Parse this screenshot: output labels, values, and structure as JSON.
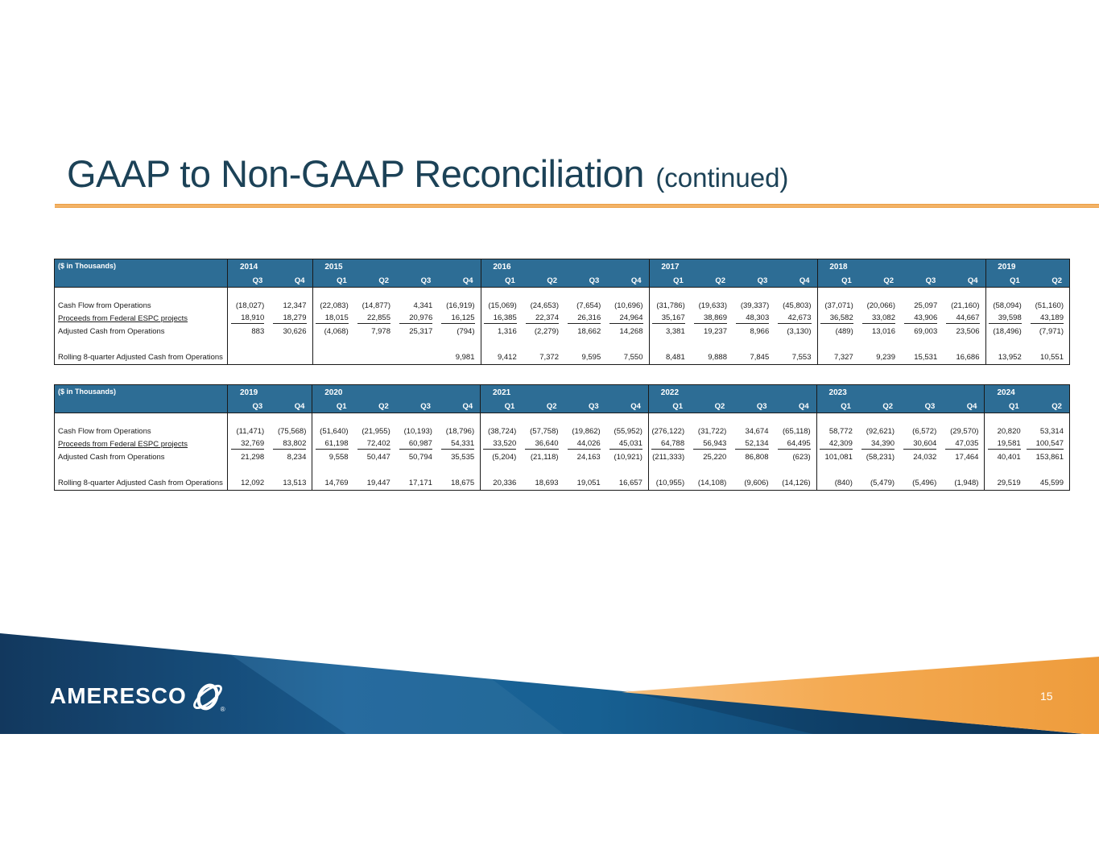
{
  "slide": {
    "title": "GAAP to Non-GAAP Reconciliation",
    "title_suffix": "(continued)",
    "page_number": "15",
    "logo_text": "AMERESCO",
    "logo_icon": "orbit-globe-icon",
    "registered_mark": "®",
    "colors": {
      "title_text": "#1c4257",
      "accent_orange_rule": "#f0a44c",
      "table_header_bg": "#2d6d95",
      "table_border": "#1a1a1a",
      "footer_blue_dark": "#0e3a5f",
      "footer_blue_mid": "#1c649a",
      "footer_orange_light": "#f8c07e",
      "footer_orange_deep": "#ee9c3c"
    }
  },
  "tables": [
    {
      "units_label": "($ in Thousands)",
      "years": [
        {
          "year": "2014",
          "quarters": [
            "Q3",
            "Q4"
          ]
        },
        {
          "year": "2015",
          "quarters": [
            "Q1",
            "Q2",
            "Q3",
            "Q4"
          ]
        },
        {
          "year": "2016",
          "quarters": [
            "Q1",
            "Q2",
            "Q3",
            "Q4"
          ]
        },
        {
          "year": "2017",
          "quarters": [
            "Q1",
            "Q2",
            "Q3",
            "Q4"
          ]
        },
        {
          "year": "2018",
          "quarters": [
            "Q1",
            "Q2",
            "Q3",
            "Q4"
          ]
        },
        {
          "year": "2019",
          "quarters": [
            "Q1",
            "Q2"
          ]
        }
      ],
      "rows": [
        {
          "label": "",
          "style": "spacer",
          "values": []
        },
        {
          "label": "Cash Flow from Operations",
          "style": "plain",
          "values": [
            "(18,027)",
            "12,347",
            "(22,083)",
            "(14,877)",
            "4,341",
            "(16,919)",
            "(15,069)",
            "(24,653)",
            "(7,654)",
            "(10,696)",
            "(31,786)",
            "(19,633)",
            "(39,337)",
            "(45,803)",
            "(37,071)",
            "(20,066)",
            "25,097",
            "(21,160)",
            "(58,094)",
            "(51,160)"
          ]
        },
        {
          "label": "Proceeds from Federal ESPC projects",
          "style": "underline",
          "values": [
            "18,910",
            "18,279",
            "18,015",
            "22,855",
            "20,976",
            "16,125",
            "16,385",
            "22,374",
            "26,316",
            "24,964",
            "35,167",
            "38,869",
            "48,303",
            "42,673",
            "36,582",
            "33,082",
            "43,906",
            "44,667",
            "39,598",
            "43,189"
          ]
        },
        {
          "label": "Adjusted Cash from Operations",
          "style": "plain",
          "values": [
            "883",
            "30,626",
            "(4,068)",
            "7,978",
            "25,317",
            "(794)",
            "1,316",
            "(2,279)",
            "18,662",
            "14,268",
            "3,381",
            "19,237",
            "8,966",
            "(3,130)",
            "(489)",
            "13,016",
            "69,003",
            "23,506",
            "(18,496)",
            "(7,971)"
          ]
        },
        {
          "label": "",
          "style": "spacer",
          "values": []
        },
        {
          "label": "Rolling 8-quarter Adjusted Cash from Operations",
          "style": "plain",
          "values": [
            "",
            "",
            "",
            "",
            "",
            "9,981",
            "9,412",
            "7,372",
            "9,595",
            "7,550",
            "8,481",
            "9,888",
            "7,845",
            "7,553",
            "7,327",
            "9,239",
            "15,531",
            "16,686",
            "13,952",
            "10,551"
          ]
        }
      ]
    },
    {
      "units_label": "($ in Thousands)",
      "years": [
        {
          "year": "2019",
          "quarters": [
            "Q3",
            "Q4"
          ]
        },
        {
          "year": "2020",
          "quarters": [
            "Q1",
            "Q2",
            "Q3",
            "Q4"
          ]
        },
        {
          "year": "2021",
          "quarters": [
            "Q1",
            "Q2",
            "Q3",
            "Q4"
          ]
        },
        {
          "year": "2022",
          "quarters": [
            "Q1",
            "Q2",
            "Q3",
            "Q4"
          ]
        },
        {
          "year": "2023",
          "quarters": [
            "Q1",
            "Q2",
            "Q3",
            "Q4"
          ]
        },
        {
          "year": "2024",
          "quarters": [
            "Q1",
            "Q2"
          ]
        }
      ],
      "rows": [
        {
          "label": "",
          "style": "spacer",
          "values": []
        },
        {
          "label": "Cash Flow from Operations",
          "style": "plain",
          "values": [
            "(11,471)",
            "(75,568)",
            "(51,640)",
            "(21,955)",
            "(10,193)",
            "(18,796)",
            "(38,724)",
            "(57,758)",
            "(19,862)",
            "(55,952)",
            "(276,122)",
            "(31,722)",
            "34,674",
            "(65,118)",
            "58,772",
            "(92,621)",
            "(6,572)",
            "(29,570)",
            "20,820",
            "53,314"
          ]
        },
        {
          "label": "Proceeds from Federal ESPC projects",
          "style": "underline",
          "values": [
            "32,769",
            "83,802",
            "61,198",
            "72,402",
            "60,987",
            "54,331",
            "33,520",
            "36,640",
            "44,026",
            "45,031",
            "64,788",
            "56,943",
            "52,134",
            "64,495",
            "42,309",
            "34,390",
            "30,604",
            "47,035",
            "19,581",
            "100,547"
          ]
        },
        {
          "label": "Adjusted Cash from Operations",
          "style": "plain",
          "values": [
            "21,298",
            "8,234",
            "9,558",
            "50,447",
            "50,794",
            "35,535",
            "(5,204)",
            "(21,118)",
            "24,163",
            "(10,921)",
            "(211,333)",
            "25,220",
            "86,808",
            "(623)",
            "101,081",
            "(58,231)",
            "24,032",
            "17,464",
            "40,401",
            "153,861"
          ]
        },
        {
          "label": "",
          "style": "spacer",
          "values": []
        },
        {
          "label": "Rolling 8-quarter Adjusted Cash from Operations",
          "style": "plain",
          "values": [
            "12,092",
            "13,513",
            "14,769",
            "19,447",
            "17,171",
            "18,675",
            "20,336",
            "18,693",
            "19,051",
            "16,657",
            "(10,955)",
            "(14,108)",
            "(9,606)",
            "(14,126)",
            "(840)",
            "(5,479)",
            "(5,496)",
            "(1,948)",
            "29,519",
            "45,599"
          ]
        }
      ]
    }
  ]
}
